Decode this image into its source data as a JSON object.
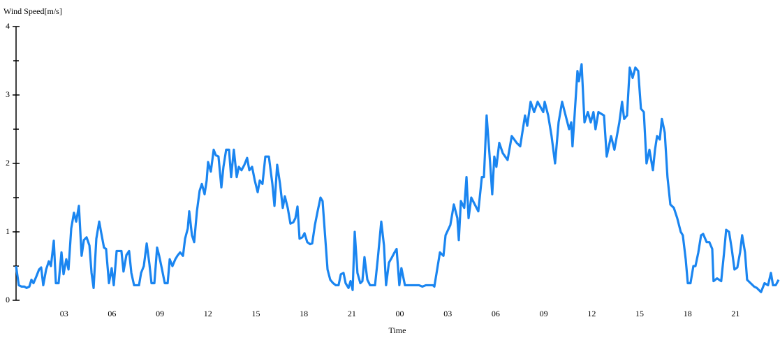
{
  "chart_data": {
    "type": "line",
    "y_label": "Wind Speed[m/s]",
    "x_label": "Time",
    "xlim": [
      0,
      47.69
    ],
    "ylim": [
      0,
      4
    ],
    "yticks": [
      0,
      1,
      2,
      3,
      4
    ],
    "yminor_ticks": [
      0.5,
      1.5,
      2.5,
      3.5
    ],
    "xticks": [
      {
        "value": 3,
        "label": "03"
      },
      {
        "value": 6,
        "label": "06"
      },
      {
        "value": 9,
        "label": "09"
      },
      {
        "value": 12,
        "label": "12"
      },
      {
        "value": 15,
        "label": "15"
      },
      {
        "value": 18,
        "label": "18"
      },
      {
        "value": 21,
        "label": "21"
      },
      {
        "value": 24,
        "label": "00"
      },
      {
        "value": 27,
        "label": "03"
      },
      {
        "value": 30,
        "label": "06"
      },
      {
        "value": 33,
        "label": "09"
      },
      {
        "value": 36,
        "label": "12"
      },
      {
        "value": 39,
        "label": "15"
      },
      {
        "value": 42,
        "label": "18"
      },
      {
        "value": 45,
        "label": "21"
      }
    ],
    "series": [
      {
        "name": "Wind Speed",
        "color": "#1a85f0",
        "x": [
          0,
          0.17,
          0.35,
          0.52,
          0.66,
          0.83,
          0.96,
          1.09,
          1.27,
          1.44,
          1.57,
          1.7,
          1.88,
          2.05,
          2.18,
          2.36,
          2.49,
          2.66,
          2.84,
          2.97,
          3.14,
          3.28,
          3.45,
          3.62,
          3.76,
          3.93,
          4.1,
          4.24,
          4.41,
          4.59,
          4.72,
          4.85,
          5.02,
          5.2,
          5.33,
          5.5,
          5.63,
          5.81,
          5.98,
          6.11,
          6.29,
          6.59,
          6.72,
          6.9,
          7.07,
          7.21,
          7.38,
          7.69,
          7.82,
          7.99,
          8.17,
          8.34,
          8.47,
          8.65,
          8.82,
          8.95,
          9.13,
          9.3,
          9.48,
          9.61,
          9.78,
          9.96,
          10.09,
          10.26,
          10.44,
          10.57,
          10.74,
          10.83,
          11.0,
          11.14,
          11.31,
          11.48,
          11.62,
          11.79,
          11.92,
          12.01,
          12.18,
          12.36,
          12.49,
          12.66,
          12.84,
          12.97,
          13.14,
          13.32,
          13.45,
          13.62,
          13.8,
          13.93,
          14.1,
          14.28,
          14.45,
          14.59,
          14.76,
          14.93,
          15.11,
          15.24,
          15.41,
          15.59,
          15.81,
          16.03,
          16.16,
          16.33,
          16.51,
          16.68,
          16.81,
          16.99,
          17.16,
          17.34,
          17.47,
          17.6,
          17.73,
          17.9,
          18.04,
          18.21,
          18.39,
          18.52,
          18.69,
          18.86,
          19.04,
          19.17,
          19.34,
          19.48,
          19.65,
          19.83,
          20.0,
          20.17,
          20.31,
          20.48,
          20.61,
          20.79,
          20.92,
          21.05,
          21.18,
          21.35,
          21.53,
          21.66,
          21.79,
          21.97,
          22.14,
          22.45,
          22.62,
          22.84,
          23.01,
          23.14,
          23.32,
          23.49,
          23.67,
          23.8,
          23.97,
          24.1,
          24.32,
          24.76,
          25.2,
          25.41,
          25.63,
          26.07,
          26.16,
          26.51,
          26.73,
          26.86,
          27.16,
          27.38,
          27.6,
          27.69,
          27.82,
          28.03,
          28.17,
          28.3,
          28.47,
          28.91,
          29.13,
          29.26,
          29.43,
          29.65,
          29.78,
          29.91,
          30.04,
          30.22,
          30.44,
          30.74,
          31.0,
          31.31,
          31.53,
          31.83,
          31.97,
          32.18,
          32.4,
          32.62,
          32.97,
          33.06,
          33.28,
          33.49,
          33.71,
          33.93,
          34.15,
          34.59,
          34.72,
          34.8,
          34.93,
          35.11,
          35.2,
          35.37,
          35.55,
          35.76,
          35.94,
          36.11,
          36.24,
          36.42,
          36.77,
          36.94,
          37.21,
          37.42,
          37.73,
          37.9,
          38.03,
          38.21,
          38.38,
          38.56,
          38.73,
          38.91,
          39.08,
          39.26,
          39.43,
          39.61,
          39.83,
          39.96,
          40.09,
          40.26,
          40.39,
          40.57,
          40.74,
          40.92,
          41.14,
          41.35,
          41.57,
          41.7,
          41.88,
          42.01,
          42.18,
          42.36,
          42.49,
          42.67,
          42.84,
          42.97,
          43.19,
          43.36,
          43.54,
          43.62,
          43.84,
          44.1,
          44.28,
          44.41,
          44.59,
          44.76,
          44.93,
          45.11,
          45.28,
          45.41,
          45.59,
          45.72,
          45.94,
          46.16,
          46.33,
          46.59,
          46.81,
          47.03,
          47.21,
          47.34,
          47.51,
          47.69
        ],
        "values": [
          0.5,
          0.22,
          0.2,
          0.2,
          0.18,
          0.2,
          0.3,
          0.25,
          0.35,
          0.45,
          0.48,
          0.22,
          0.45,
          0.57,
          0.5,
          0.87,
          0.25,
          0.25,
          0.7,
          0.38,
          0.6,
          0.45,
          1.05,
          1.28,
          1.15,
          1.38,
          0.65,
          0.88,
          0.92,
          0.8,
          0.4,
          0.18,
          0.9,
          1.15,
          0.98,
          0.77,
          0.75,
          0.25,
          0.47,
          0.22,
          0.72,
          0.72,
          0.42,
          0.66,
          0.72,
          0.4,
          0.22,
          0.22,
          0.4,
          0.5,
          0.83,
          0.53,
          0.25,
          0.25,
          0.77,
          0.65,
          0.45,
          0.25,
          0.25,
          0.6,
          0.5,
          0.6,
          0.65,
          0.7,
          0.65,
          0.9,
          1.05,
          1.3,
          0.95,
          0.85,
          1.3,
          1.6,
          1.7,
          1.55,
          1.75,
          2.02,
          1.88,
          2.2,
          2.12,
          2.1,
          1.65,
          1.95,
          2.2,
          2.2,
          1.8,
          2.2,
          1.8,
          1.95,
          1.9,
          1.98,
          2.08,
          1.9,
          1.95,
          1.75,
          1.58,
          1.75,
          1.7,
          2.1,
          2.1,
          1.7,
          1.38,
          1.98,
          1.7,
          1.35,
          1.52,
          1.35,
          1.12,
          1.14,
          1.2,
          1.37,
          0.9,
          0.92,
          0.98,
          0.85,
          0.82,
          0.83,
          1.1,
          1.3,
          1.5,
          1.45,
          0.9,
          0.45,
          0.3,
          0.25,
          0.22,
          0.22,
          0.38,
          0.4,
          0.25,
          0.18,
          0.28,
          0.15,
          1.0,
          0.4,
          0.25,
          0.28,
          0.63,
          0.3,
          0.22,
          0.22,
          0.6,
          1.15,
          0.8,
          0.22,
          0.55,
          0.62,
          0.7,
          0.75,
          0.22,
          0.47,
          0.22,
          0.22,
          0.22,
          0.2,
          0.22,
          0.22,
          0.2,
          0.7,
          0.65,
          0.95,
          1.1,
          1.4,
          1.2,
          0.88,
          1.45,
          1.35,
          1.8,
          1.2,
          1.5,
          1.3,
          1.8,
          1.8,
          2.7,
          2.0,
          1.55,
          2.1,
          1.95,
          2.3,
          2.15,
          2.05,
          2.4,
          2.3,
          2.25,
          2.7,
          2.55,
          2.9,
          2.75,
          2.9,
          2.75,
          2.9,
          2.7,
          2.4,
          2.0,
          2.6,
          2.9,
          2.5,
          2.6,
          2.25,
          2.7,
          3.35,
          3.2,
          3.45,
          2.6,
          2.75,
          2.6,
          2.75,
          2.5,
          2.75,
          2.7,
          2.1,
          2.4,
          2.2,
          2.6,
          2.9,
          2.65,
          2.7,
          3.4,
          3.25,
          3.4,
          3.35,
          2.8,
          2.75,
          2.0,
          2.2,
          1.9,
          2.2,
          2.4,
          2.35,
          2.65,
          2.45,
          1.8,
          1.4,
          1.35,
          1.2,
          1.0,
          0.95,
          0.6,
          0.25,
          0.25,
          0.5,
          0.5,
          0.7,
          0.95,
          0.97,
          0.85,
          0.85,
          0.75,
          0.28,
          0.32,
          0.28,
          0.7,
          1.03,
          1.0,
          0.75,
          0.45,
          0.48,
          0.7,
          0.95,
          0.7,
          0.3,
          0.25,
          0.2,
          0.18,
          0.12,
          0.25,
          0.22,
          0.4,
          0.22,
          0.22,
          0.3
        ]
      }
    ]
  }
}
